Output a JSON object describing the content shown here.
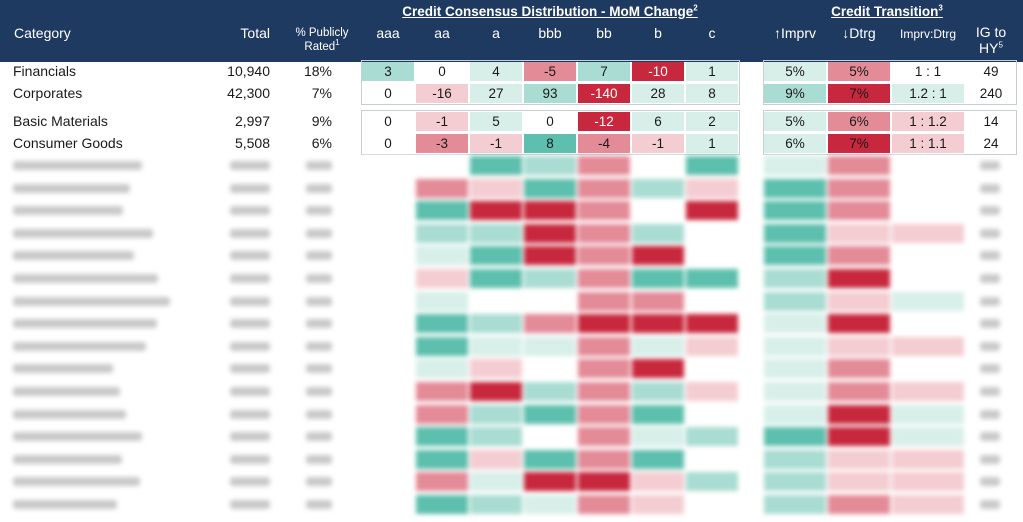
{
  "colors": {
    "header_bg": "#1f3a60",
    "teal_dark": "#5dbfad",
    "teal_mid": "#a9dcd2",
    "teal_light": "#d8efe9",
    "red_dark": "#c8283d",
    "red_mid": "#e48b98",
    "red_light": "#f4cdd2",
    "white_cell": "#ffffff"
  },
  "header": {
    "category": "Category",
    "total": "Total",
    "pct_publicly_rated": "% Publicly Rated",
    "pct_sup": "1",
    "group_consensus": "Credit Consensus Distribution - MoM Change",
    "group_consensus_sup": "2",
    "group_transition": "Credit Transition",
    "group_transition_sup": "3",
    "cols": [
      "aaa",
      "aa",
      "a",
      "bbb",
      "bb",
      "b",
      "c"
    ],
    "imprv": "↑Imprv",
    "dtrg": "↓Dtrg",
    "ratio": "Imprv:Dtrg",
    "ig_to_hy": "IG to HY",
    "ig_sup": "5"
  },
  "rows": [
    {
      "category": "Financials",
      "total": "10,940",
      "pct": "18%",
      "dist": [
        "3",
        "0",
        "4",
        "-5",
        "7",
        "-10",
        "1"
      ],
      "dist_colors": [
        "teal_mid",
        "white_cell",
        "teal_light",
        "red_mid",
        "teal_mid",
        "red_dark",
        "teal_light"
      ],
      "imprv": "5%",
      "imprv_color": "teal_light",
      "dtrg": "5%",
      "dtrg_color": "red_mid",
      "ratio": "1 : 1",
      "ratio_color": "white_cell",
      "ig_hy": "49"
    },
    {
      "category": "Corporates",
      "total": "42,300",
      "pct": "7%",
      "dist": [
        "0",
        "-16",
        "27",
        "93",
        "-140",
        "28",
        "8"
      ],
      "dist_colors": [
        "white_cell",
        "red_light",
        "teal_light",
        "teal_mid",
        "red_dark",
        "teal_light",
        "teal_light"
      ],
      "imprv": "9%",
      "imprv_color": "teal_mid",
      "dtrg": "7%",
      "dtrg_color": "red_dark",
      "ratio": "1.2 : 1",
      "ratio_color": "teal_light",
      "ig_hy": "240"
    },
    {
      "category": "Basic Materials",
      "total": "2,997",
      "pct": "9%",
      "dist": [
        "0",
        "-1",
        "5",
        "0",
        "-12",
        "6",
        "2"
      ],
      "dist_colors": [
        "white_cell",
        "red_light",
        "teal_light",
        "white_cell",
        "red_dark",
        "teal_light",
        "teal_light"
      ],
      "imprv": "5%",
      "imprv_color": "teal_light",
      "dtrg": "6%",
      "dtrg_color": "red_mid",
      "ratio": "1 : 1.2",
      "ratio_color": "red_light",
      "ig_hy": "14"
    },
    {
      "category": "Consumer Goods",
      "total": "5,508",
      "pct": "6%",
      "dist": [
        "0",
        "-3",
        "-1",
        "8",
        "-4",
        "-1",
        "1"
      ],
      "dist_colors": [
        "white_cell",
        "red_mid",
        "red_light",
        "teal_dark",
        "red_mid",
        "red_light",
        "teal_light"
      ],
      "imprv": "6%",
      "imprv_color": "teal_light",
      "dtrg": "7%",
      "dtrg_color": "red_dark",
      "ratio": "1 : 1.1",
      "ratio_color": "red_light",
      "ig_hy": "24"
    }
  ]
}
